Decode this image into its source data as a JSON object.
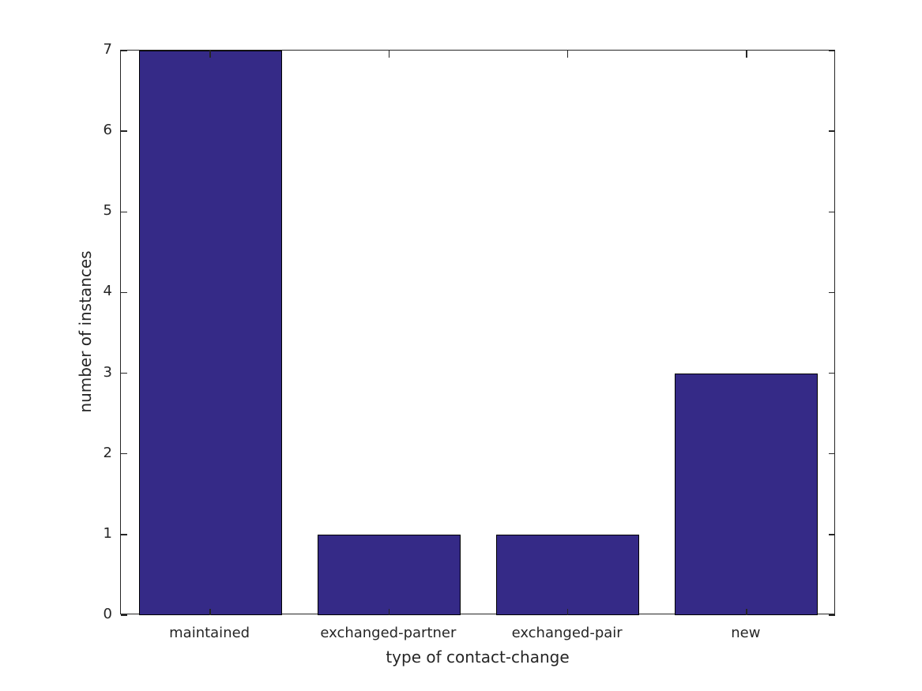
{
  "chart_data": {
    "type": "bar",
    "title": "",
    "xlabel": "type of contact-change",
    "ylabel": "number of instances",
    "categories": [
      "maintained",
      "exchanged-partner",
      "exchanged-pair",
      "new"
    ],
    "values": [
      7,
      1,
      1,
      3
    ],
    "ylim": [
      0,
      7
    ],
    "yticks": [
      0,
      1,
      2,
      3,
      4,
      5,
      6,
      7
    ],
    "bar_width_fraction": 0.8,
    "grid": false,
    "legend": null,
    "box": true,
    "tick_direction": "in",
    "colors": {
      "bar_fill": "#352A87",
      "bar_edge": "#000000",
      "axis": "#262626",
      "text": "#262626",
      "background": "#ffffff"
    }
  }
}
